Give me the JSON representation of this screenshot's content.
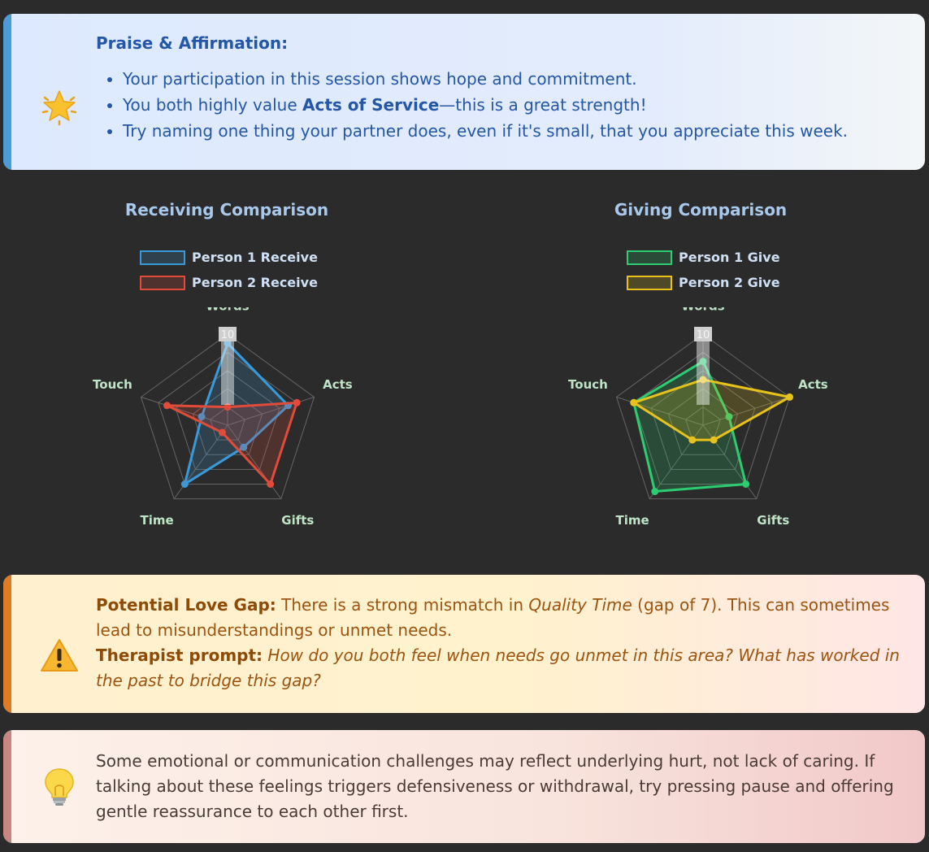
{
  "praise": {
    "icon": "star-icon",
    "title": "Praise & Affirmation:",
    "items": [
      "Your participation in this session shows hope and commitment.",
      "Try naming one thing your partner does, even if it's small, that you appreciate this week."
    ],
    "strength_prefix": "You both highly value ",
    "strength_bold": "Acts of Service",
    "strength_suffix": "—this is a great strength!"
  },
  "chart_data": [
    {
      "type": "radar",
      "title": "Receiving Comparison",
      "categories": [
        "Words",
        "Acts",
        "Gifts",
        "Time",
        "Touch"
      ],
      "rlim": [
        0,
        10
      ],
      "tick_label": "10",
      "legend": "top-left",
      "series": [
        {
          "name": "Person 1 Receive",
          "color": "#3a9ad9",
          "values": [
            9,
            7,
            3,
            8,
            3
          ]
        },
        {
          "name": "Person 2 Receive",
          "color": "#e04b3a",
          "values": [
            2,
            8,
            8,
            1,
            7
          ]
        }
      ]
    },
    {
      "type": "radar",
      "title": "Giving Comparison",
      "categories": [
        "Words",
        "Acts",
        "Gifts",
        "Time",
        "Touch"
      ],
      "rlim": [
        0,
        10
      ],
      "tick_label": "10",
      "legend": "top-left",
      "series": [
        {
          "name": "Person 1 Give",
          "color": "#2ecc71",
          "values": [
            7,
            3,
            8,
            9,
            8
          ]
        },
        {
          "name": "Person 2 Give",
          "color": "#e7c21c",
          "values": [
            5,
            10,
            2,
            2,
            8
          ]
        }
      ]
    }
  ],
  "gap": {
    "icon": "warning-icon",
    "label": "Potential Love Gap:",
    "text_a": " There is a strong mismatch in ",
    "area": "Quality Time",
    "text_b": " (gap of 7). This can sometimes lead to misunderstandings or unmet needs.",
    "prompt_label": "Therapist prompt:",
    "prompt": "How do you both feel when needs go unmet in this area? What has worked in the past to bridge this gap?"
  },
  "tip": {
    "icon": "lightbulb-icon",
    "text": "Some emotional or communication challenges may reflect underlying hurt, not lack of caring. If talking about these feelings triggers defensiveness or withdrawal, try pressing pause and offering gentle reassurance to each other first."
  }
}
